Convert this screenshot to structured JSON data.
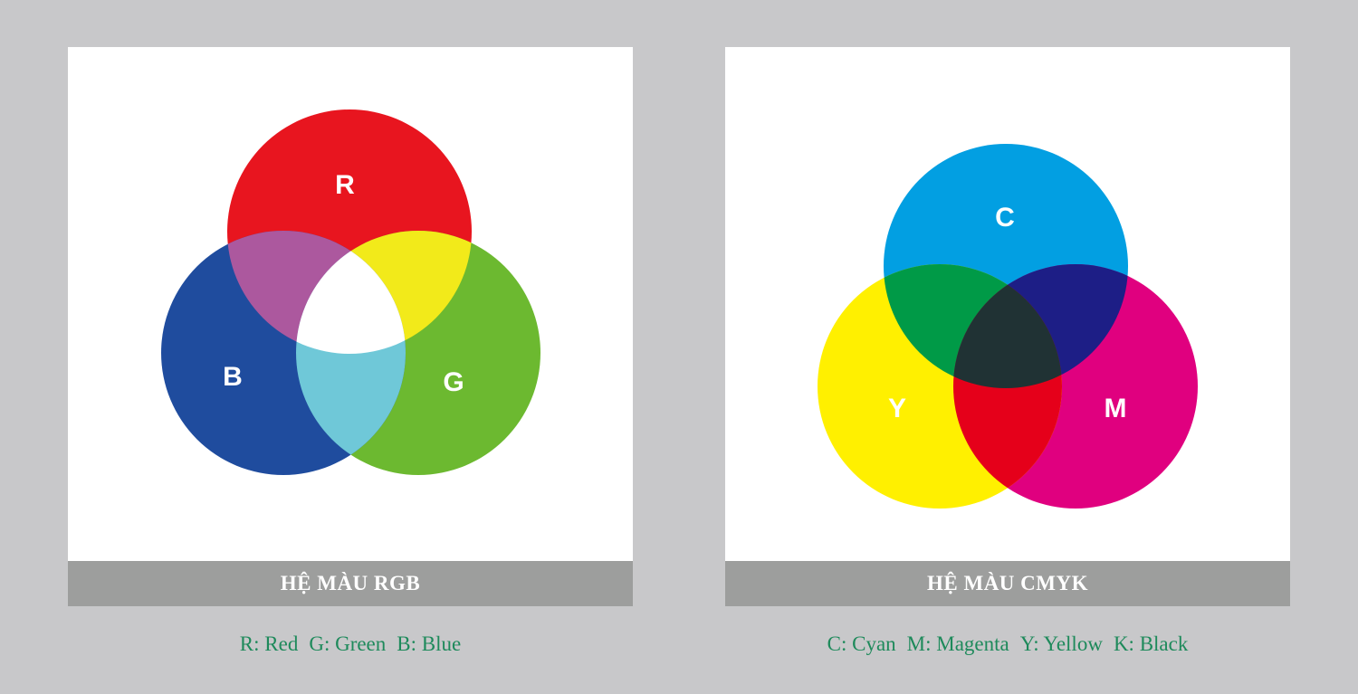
{
  "rgb": {
    "caption": "HỆ MÀU RGB",
    "labels": {
      "r": "R",
      "g": "G",
      "b": "B"
    },
    "legend": [
      "R: Red",
      "G: Green",
      "B: Blue"
    ],
    "colors": {
      "red": "#e8151f",
      "green": "#6cb930",
      "blue": "#1f4c9e",
      "red_green": "#f2ea1a",
      "red_blue": "#ac589e",
      "green_blue": "#6fc8d8",
      "white": "#ffffff"
    }
  },
  "cmyk": {
    "caption": "HỆ MÀU CMYK",
    "labels": {
      "c": "C",
      "m": "M",
      "y": "Y"
    },
    "legend": [
      "C: Cyan",
      "M: Magenta",
      "Y: Yellow",
      "K: Black"
    ],
    "colors": {
      "cyan": "#029fe2",
      "magenta": "#e0007f",
      "yellow": "#fff000",
      "cyan_yellow": "#009a47",
      "cyan_magenta": "#1d1e86",
      "magenta_yellow": "#e5001a",
      "black": "#203234"
    }
  },
  "background_color": "#c8c8ca",
  "caption_bar_color": "#9d9e9d",
  "legend_text_color": "#1e8a5b"
}
